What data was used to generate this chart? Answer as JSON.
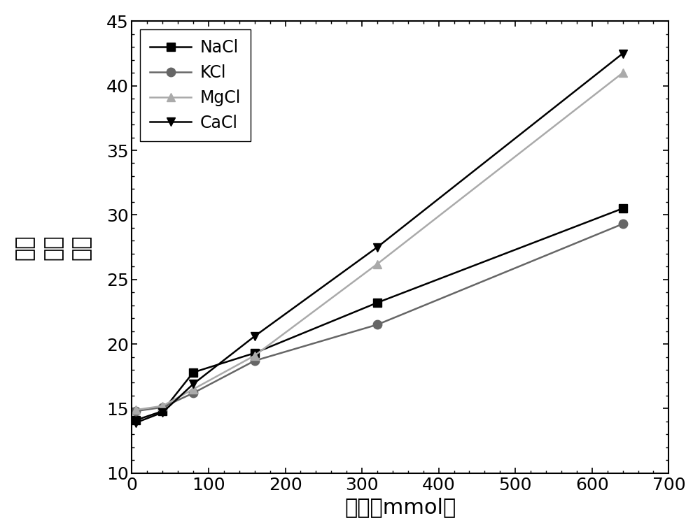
{
  "series": {
    "NaCl": {
      "x": [
        5,
        40,
        80,
        160,
        320,
        640
      ],
      "y": [
        14.1,
        14.8,
        17.8,
        19.3,
        23.2,
        30.5
      ],
      "color": "#000000",
      "marker": "s",
      "marker_color": "#000000",
      "linewidth": 1.8,
      "markersize": 9,
      "linestyle": "-"
    },
    "KCl": {
      "x": [
        5,
        40,
        80,
        160,
        320,
        640
      ],
      "y": [
        14.8,
        15.1,
        16.2,
        18.7,
        21.5,
        29.3
      ],
      "color": "#666666",
      "marker": "o",
      "marker_color": "#666666",
      "linewidth": 1.8,
      "markersize": 9,
      "linestyle": "-"
    },
    "MgCl": {
      "x": [
        5,
        40,
        80,
        160,
        320,
        640
      ],
      "y": [
        14.9,
        15.2,
        16.5,
        19.1,
        26.2,
        41.0
      ],
      "color": "#aaaaaa",
      "marker": "^",
      "marker_color": "#aaaaaa",
      "linewidth": 1.8,
      "markersize": 9,
      "linestyle": "-"
    },
    "CaCl": {
      "x": [
        5,
        40,
        80,
        160,
        320,
        640
      ],
      "y": [
        13.9,
        14.7,
        16.9,
        20.6,
        27.5,
        42.5
      ],
      "color": "#000000",
      "marker": "v",
      "marker_color": "#000000",
      "linewidth": 1.8,
      "markersize": 9,
      "linestyle": "-"
    }
  },
  "xlim": [
    0,
    700
  ],
  "ylim": [
    10,
    45
  ],
  "xticks": [
    0,
    100,
    200,
    300,
    400,
    500,
    600,
    700
  ],
  "yticks": [
    10,
    15,
    20,
    25,
    30,
    35,
    40,
    45
  ],
  "xlabel": "浓度（mmol）",
  "ylabel_chars": [
    "相对",
    "吸收",
    "系数"
  ],
  "legend_order": [
    "NaCl",
    "KCl",
    "MgCl",
    "CaCl"
  ],
  "legend_loc": "upper left",
  "background_color": "#ffffff",
  "font_size_labels": 22,
  "font_size_ticks": 18,
  "font_size_legend": 17
}
